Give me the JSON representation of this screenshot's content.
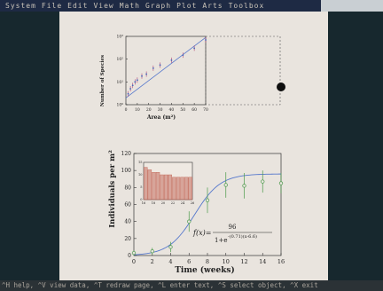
{
  "menu": {
    "items": [
      "System",
      "File",
      "Edit",
      "View",
      "Math",
      "Graph",
      "Plot",
      "Arts",
      "Toolbox"
    ]
  },
  "status": {
    "text": "^H help, ^V view data, ^T redraw page, ^L enter text, ^S select object, ^X exit"
  },
  "colors": {
    "desktop": "#17282e",
    "page": "#e9e4de",
    "fit_line": "#5577cc",
    "green_series": "#4a9a4a",
    "bars": "#c06050"
  },
  "chart_data": [
    {
      "type": "scatter",
      "xlabel": "Area (m²)",
      "ylabel": "Number of Species",
      "x_ticks": [
        "0",
        "10",
        "20",
        "30",
        "40",
        "50",
        "60",
        "70"
      ],
      "y_ticks": [
        "10⁰",
        "10¹",
        "10²",
        "10³"
      ],
      "xlim": [
        0,
        70
      ],
      "ylog": true,
      "ylim": [
        1,
        1000
      ],
      "series": [
        {
          "x": [
            2,
            4,
            6,
            8,
            10,
            14,
            18,
            24,
            30,
            40,
            50,
            60,
            70
          ],
          "y": [
            3,
            5,
            7,
            10,
            12,
            18,
            22,
            40,
            55,
            90,
            150,
            300,
            700
          ]
        }
      ],
      "fit": {
        "x": [
          0,
          70
        ],
        "y": [
          2,
          900
        ]
      }
    },
    {
      "type": "scatter",
      "title": "",
      "xlabel": "Time (weeks)",
      "ylabel": "Individuals per m²",
      "x_ticks": [
        "0",
        "2",
        "4",
        "6",
        "8",
        "10",
        "12",
        "14",
        "16"
      ],
      "y_ticks": [
        "0",
        "20",
        "40",
        "60",
        "80",
        "100",
        "120"
      ],
      "xlim": [
        0,
        16
      ],
      "ylim": [
        0,
        120
      ],
      "points": [
        {
          "x": 0,
          "y": 3,
          "err": 3
        },
        {
          "x": 2,
          "y": 5,
          "err": 4
        },
        {
          "x": 4,
          "y": 10,
          "err": 6
        },
        {
          "x": 6,
          "y": 40,
          "err": 12
        },
        {
          "x": 8,
          "y": 65,
          "err": 15
        },
        {
          "x": 10,
          "y": 83,
          "err": 15
        },
        {
          "x": 12,
          "y": 82,
          "err": 15
        },
        {
          "x": 14,
          "y": 87,
          "err": 13
        },
        {
          "x": 16,
          "y": 85,
          "err": 12
        }
      ],
      "equation": {
        "lhs": "f(x)=",
        "numerator": "96",
        "denominator": "1+e",
        "exponent": "-(0.71)(x-6.6)"
      },
      "inset": {
        "type": "bar",
        "x_ticks": [
          "16",
          "18",
          "20",
          "22",
          "24",
          "26"
        ],
        "y_ticks": [
          "0",
          "5",
          "10",
          "15"
        ],
        "values": [
          13,
          12,
          11,
          11,
          10,
          10,
          10,
          9,
          9,
          9,
          9,
          9
        ],
        "ylim": [
          0,
          15
        ]
      }
    }
  ]
}
